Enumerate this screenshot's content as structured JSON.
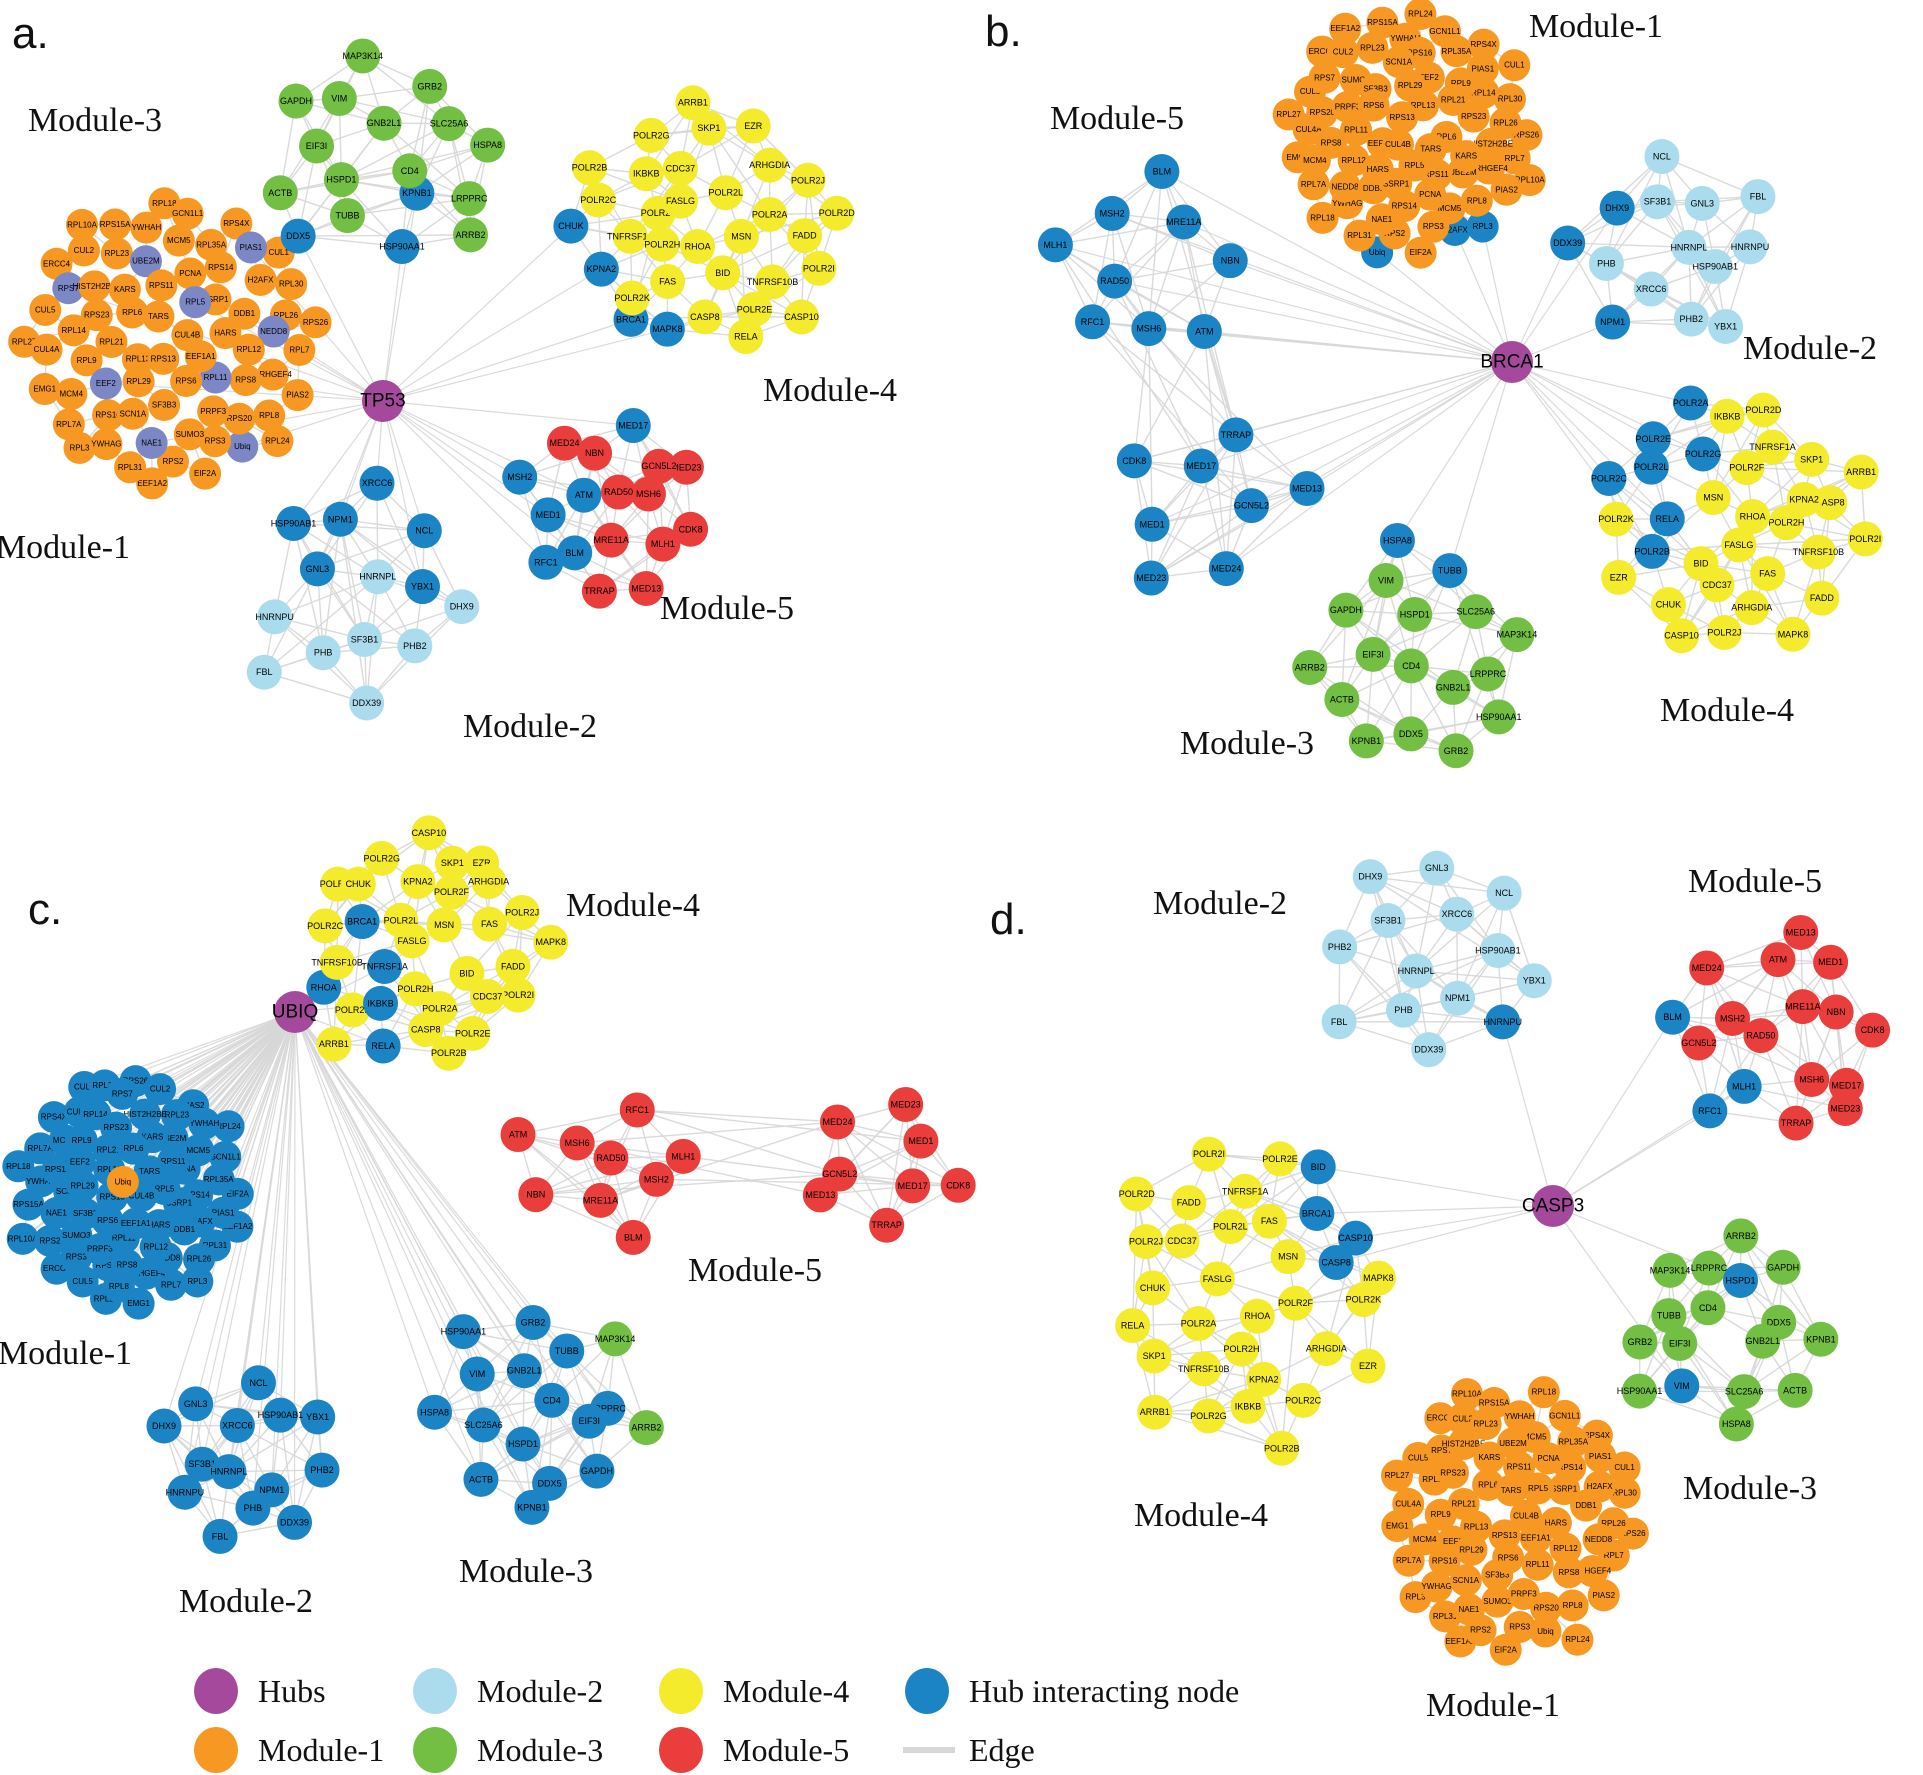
{
  "figure_type": "protein-protein interaction network modules",
  "colors": {
    "hub": "#A5499D",
    "m1": "#F79822",
    "m2": "#ABDCEE",
    "m3": "#72BF44",
    "m4": "#F4EB2C",
    "m5": "#E93E3C",
    "hub_interacting": "#1A84C4",
    "m1_soft_interacting": "#7C87C5",
    "edge": "#D7D7D7",
    "label": "#000000"
  },
  "module_genes": {
    "m1": [
      "CUL4B",
      "RPS13",
      "TARS",
      "EEF1A1",
      "RPL13",
      "RPL5",
      "RPS6",
      "RPL6",
      "HARS",
      "RPL29",
      "RPS11",
      "RPL11",
      "RPL21",
      "SSRP1",
      "SF3B3",
      "KARS",
      "RPL12",
      "EEF2",
      "PCNA",
      "PRPF3",
      "RPS23",
      "DDB1",
      "SCN1A",
      "UBE2M",
      "RPS8",
      "RPL9",
      "RPS14",
      "SUMO3",
      "HIST2H2BE",
      "NEDD8",
      "RPS16",
      "MCM5",
      "RPS20",
      "RPL14",
      "H2AFX",
      "NAE1",
      "RPL23",
      "ARHGEF4",
      "MCM4",
      "RPL35A",
      "RPS3",
      "RPS7",
      "RPL26",
      "YWHAG",
      "YWHAH",
      "RPL8",
      "CUL4A",
      "PIAS1",
      "RPS2",
      "CUL2",
      "RPL7",
      "RPL7A",
      "GCN1L1",
      "Ubiq",
      "CUL5",
      "RPL30",
      "RPL31",
      "RPS15A",
      "PIAS2",
      "EMG1",
      "RPS4X",
      "EIF2A",
      "ERCC4",
      "RPS26",
      "RPL3",
      "RPL18",
      "RPL24",
      "RPL27",
      "CUL1",
      "EEF1A2",
      "RPL10A"
    ],
    "m2": [
      "HNRNPL",
      "XRCC6",
      "NPM1",
      "SF3B1",
      "HSP90AB1",
      "PHB",
      "GNL3",
      "PHB2",
      "HNRNPU",
      "NCL",
      "DDX39",
      "DHX9",
      "YBX1",
      "FBL"
    ],
    "m3": [
      "CD4",
      "HSPD1",
      "GNB2L1",
      "EIF3I",
      "SLC25A6",
      "TUBB",
      "DDX5",
      "VIM",
      "LRPPRC",
      "ACTB",
      "GRB2",
      "GAPDH",
      "HSPA8",
      "MAP3K14",
      "KPNB1",
      "HSP90AA1",
      "ARRB2"
    ],
    "m4": [
      "RHOA",
      "FASLG",
      "MSN",
      "POLR2H",
      "POLR2L",
      "BID",
      "POLR2F",
      "POLR2A",
      "FAS",
      "KPNA2",
      "CDC37",
      "TNFRSF10B",
      "TNFRSF1A",
      "ARHGDIA",
      "CASP8",
      "CHUK",
      "IKBKB",
      "FADD",
      "POLR2K",
      "SKP1",
      "POLR2E",
      "POLR2C",
      "POLR2J",
      "POLR2G",
      "POLR2I",
      "EZR",
      "RELA",
      "POLR2B",
      "POLR2D",
      "MAPK8",
      "ARRB1",
      "CASP10",
      "BRCA1"
    ],
    "m5": [
      "RAD50",
      "MRE11A",
      "MSH6",
      "MSH2",
      "NBN",
      "RFC1",
      "BLM",
      "ATM",
      "MLH1",
      "MED17",
      "GCN5L2",
      "MED1",
      "TRRAP",
      "MED24",
      "CDK8",
      "MED13",
      "MED23"
    ]
  },
  "panels": [
    {
      "id": "a",
      "letter": "a.",
      "hub": "TP53",
      "modules": [
        {
          "key": "m1",
          "label": "Module-1",
          "genes": "m1",
          "blue": [
            "Ubiq",
            "RPL5",
            "RPL11",
            "EEF2",
            "UBE2M",
            "NEDD8",
            "NAE1",
            "RPS7",
            "PIAS1"
          ],
          "blue_style": "soft"
        },
        {
          "key": "m2",
          "label": "Module-2",
          "genes": "m2",
          "blue": [
            "XRCC6",
            "NPM1",
            "HSP90AB1",
            "GNL3",
            "NCL",
            "YBX1"
          ]
        },
        {
          "key": "m3",
          "label": "Module-3",
          "genes": "m3",
          "blue": [
            "DDX5",
            "KPNB1",
            "HSP90AA1"
          ]
        },
        {
          "key": "m4",
          "label": "Module-4",
          "genes": "m4",
          "blue": [
            "KPNA2",
            "CHUK",
            "MAPK8",
            "BRCA1"
          ]
        },
        {
          "key": "m5",
          "label": "Module-5",
          "genes": "m5",
          "blue": [
            "MSH2",
            "MED17",
            "MED1",
            "RFC1",
            "BLM",
            "ATM"
          ]
        }
      ]
    },
    {
      "id": "b",
      "letter": "b.",
      "hub": "BRCA1",
      "modules": [
        {
          "key": "m1",
          "label": "Module-1",
          "genes": "m1",
          "blue": [
            "Ubiq",
            "H2AFX",
            "RPL3"
          ]
        },
        {
          "key": "m2",
          "label": "Module-2",
          "genes": "m2",
          "blue": [
            "NPM1",
            "DHX9",
            "DDX39"
          ]
        },
        {
          "key": "m3",
          "label": "Module-3",
          "genes": "m3",
          "blue": [
            "TUBB",
            "HSPA8"
          ]
        },
        {
          "key": "m4",
          "label": "Module-4",
          "genes": "m4",
          "exclude": [
            "BRCA1"
          ],
          "blue": [
            "POLR2A",
            "POLR2B",
            "POLR2C",
            "POLR2E",
            "POLR2G",
            "POLR2L",
            "RELA"
          ]
        },
        {
          "key": "m5",
          "label": "Module-5",
          "genes": "m5",
          "blue": "all"
        }
      ]
    },
    {
      "id": "c",
      "letter": "c.",
      "hub": "UBIQ",
      "modules": [
        {
          "key": "m1",
          "label": "Module-1",
          "genes": "m1",
          "blue": "all_except",
          "not_blue": [
            "Ubiq"
          ]
        },
        {
          "key": "m2",
          "label": "Module-2",
          "genes": "m2",
          "blue": "all"
        },
        {
          "key": "m3",
          "label": "Module-3",
          "genes": "m3",
          "blue": "all_except",
          "not_blue": [
            "ARRB2",
            "MAP3K14"
          ]
        },
        {
          "key": "m4",
          "label": "Module-4",
          "genes": "m4",
          "blue": [
            "BRCA1",
            "IKBKB",
            "TNFRSF1A",
            "RELA",
            "RHOA"
          ]
        },
        {
          "key": "m5",
          "label": "Module-5",
          "genes": "m5",
          "blue": []
        }
      ]
    },
    {
      "id": "d",
      "letter": "d.",
      "hub": "CASP3",
      "modules": [
        {
          "key": "m1",
          "label": "Module-1",
          "genes": "m1",
          "blue": []
        },
        {
          "key": "m2",
          "label": "Module-2",
          "genes": "m2",
          "blue": [
            "HNRNPU"
          ]
        },
        {
          "key": "m3",
          "label": "Module-3",
          "genes": "m3",
          "blue": [
            "VIM",
            "HSPD1"
          ]
        },
        {
          "key": "m4",
          "label": "Module-4",
          "genes": "m4",
          "blue": [
            "BRCA1",
            "CASP10",
            "CASP8",
            "BID"
          ]
        },
        {
          "key": "m5",
          "label": "Module-5",
          "genes": "m5",
          "blue": [
            "RFC1",
            "MLH1",
            "BLM"
          ]
        }
      ]
    }
  ],
  "legend": {
    "items": [
      {
        "label": "Hubs",
        "color_key": "hub",
        "row": 0,
        "col": 0,
        "swatch": "circle"
      },
      {
        "label": "Module-1",
        "color_key": "m1",
        "row": 1,
        "col": 0,
        "swatch": "circle"
      },
      {
        "label": "Module-2",
        "color_key": "m2",
        "row": 0,
        "col": 1,
        "swatch": "circle"
      },
      {
        "label": "Module-3",
        "color_key": "m3",
        "row": 1,
        "col": 1,
        "swatch": "circle"
      },
      {
        "label": "Module-4",
        "color_key": "m4",
        "row": 0,
        "col": 2,
        "swatch": "circle"
      },
      {
        "label": "Module-5",
        "color_key": "m5",
        "row": 1,
        "col": 2,
        "swatch": "circle"
      },
      {
        "label": "Hub interacting node",
        "color_key": "hub_interacting",
        "row": 0,
        "col": 3,
        "swatch": "circle"
      },
      {
        "label": "Edge",
        "color_key": "edge",
        "row": 1,
        "col": 3,
        "swatch": "line"
      }
    ]
  }
}
